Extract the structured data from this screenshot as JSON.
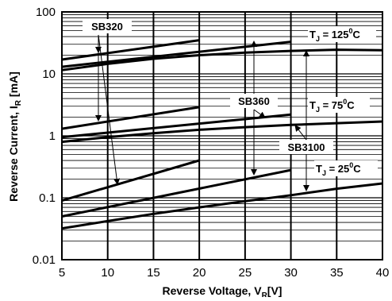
{
  "chart_data": {
    "type": "line",
    "xlabel_main": "Reverse Voltage, V",
    "xlabel_sub": "R",
    "xlabel_tail": "[V]",
    "ylabel_main": "Reverse Current, I",
    "ylabel_sub": "R",
    "ylabel_tail": " [mA]",
    "xlim": [
      5,
      40
    ],
    "ylim": [
      0.01,
      100
    ],
    "yscale": "log",
    "x_ticks": [
      "5",
      "10",
      "15",
      "20",
      "25",
      "30",
      "35",
      "40"
    ],
    "y_ticks": [
      "0.01",
      "0.1",
      "1",
      "10",
      "100"
    ],
    "grid": true,
    "temperature_labels": [
      {
        "prefix": "T",
        "sub": "J",
        "mid": " = 125",
        "sup": "0",
        "suffix": "C"
      },
      {
        "prefix": "T",
        "sub": "J",
        "mid": " = 75",
        "sup": "0",
        "suffix": "C"
      },
      {
        "prefix": "T",
        "sub": "J",
        "mid": " = 25",
        "sup": "0",
        "suffix": "C"
      }
    ],
    "device_labels": [
      "SB320",
      "SB360",
      "SB3100"
    ],
    "series": [
      {
        "device": "SB320",
        "temp": "125",
        "x": [
          5,
          20
        ],
        "y": [
          17,
          35
        ]
      },
      {
        "device": "SB320",
        "temp": "75",
        "x": [
          5,
          20
        ],
        "y": [
          1.3,
          2.9
        ]
      },
      {
        "device": "SB320",
        "temp": "25",
        "x": [
          5,
          20
        ],
        "y": [
          0.09,
          0.4
        ]
      },
      {
        "device": "SB360",
        "temp": "125",
        "x": [
          5,
          30
        ],
        "y": [
          13,
          33
        ]
      },
      {
        "device": "SB360",
        "temp": "75",
        "x": [
          5,
          30
        ],
        "y": [
          0.95,
          2.2
        ]
      },
      {
        "device": "SB360",
        "temp": "25",
        "x": [
          5,
          30
        ],
        "y": [
          0.05,
          0.28
        ]
      },
      {
        "device": "SB3100",
        "temp": "125",
        "x": [
          5,
          10,
          15,
          20,
          25,
          30,
          35,
          40
        ],
        "y": [
          11.5,
          14.5,
          17.5,
          20,
          22,
          23.5,
          24.5,
          24
        ]
      },
      {
        "device": "SB3100",
        "temp": "75",
        "x": [
          5,
          10,
          15,
          20,
          25,
          30,
          35,
          40
        ],
        "y": [
          0.8,
          0.95,
          1.1,
          1.25,
          1.38,
          1.5,
          1.6,
          1.7
        ]
      },
      {
        "device": "SB3100",
        "temp": "25",
        "x": [
          5,
          10,
          15,
          20,
          25,
          30,
          35,
          40
        ],
        "y": [
          0.032,
          0.042,
          0.055,
          0.07,
          0.088,
          0.11,
          0.14,
          0.17
        ]
      }
    ]
  }
}
